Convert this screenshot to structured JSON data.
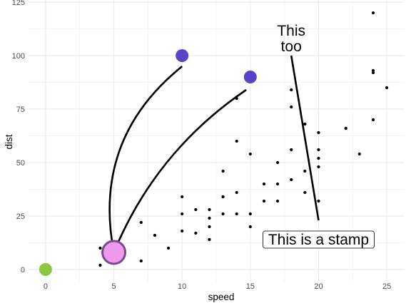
{
  "chart_data": {
    "type": "scatter",
    "xlabel": "speed",
    "ylabel": "dist",
    "xlim": [
      -1.25,
      26.25
    ],
    "ylim": [
      -6,
      126
    ],
    "xticks": [
      0,
      5,
      10,
      15,
      20,
      25
    ],
    "yticks": [
      0,
      25,
      50,
      75,
      100,
      125
    ],
    "grid": true,
    "points": [
      [
        4,
        2
      ],
      [
        4,
        10
      ],
      [
        7,
        4
      ],
      [
        7,
        22
      ],
      [
        8,
        16
      ],
      [
        9,
        10
      ],
      [
        10,
        18
      ],
      [
        10,
        26
      ],
      [
        10,
        34
      ],
      [
        11,
        17
      ],
      [
        11,
        28
      ],
      [
        12,
        14
      ],
      [
        12,
        20
      ],
      [
        12,
        24
      ],
      [
        12,
        28
      ],
      [
        13,
        26
      ],
      [
        13,
        34
      ],
      [
        13,
        34
      ],
      [
        13,
        46
      ],
      [
        14,
        26
      ],
      [
        14,
        36
      ],
      [
        14,
        60
      ],
      [
        14,
        80
      ],
      [
        15,
        20
      ],
      [
        15,
        26
      ],
      [
        15,
        54
      ],
      [
        16,
        32
      ],
      [
        16,
        40
      ],
      [
        17,
        32
      ],
      [
        17,
        40
      ],
      [
        17,
        50
      ],
      [
        18,
        42
      ],
      [
        18,
        56
      ],
      [
        18,
        76
      ],
      [
        18,
        84
      ],
      [
        19,
        36
      ],
      [
        19,
        46
      ],
      [
        19,
        68
      ],
      [
        20,
        32
      ],
      [
        20,
        48
      ],
      [
        20,
        52
      ],
      [
        20,
        56
      ],
      [
        20,
        64
      ],
      [
        22,
        66
      ],
      [
        23,
        54
      ],
      [
        24,
        70
      ],
      [
        24,
        92
      ],
      [
        24,
        93
      ],
      [
        24,
        120
      ],
      [
        25,
        85
      ]
    ],
    "highlight_points": [
      {
        "x": 0,
        "y": 0,
        "color": "#8cc63f"
      },
      {
        "x": 5,
        "y": 8,
        "color": "#ee99ee",
        "stroke": "#7a4a8a"
      },
      {
        "x": 10,
        "y": 100,
        "color": "#5b43c8"
      },
      {
        "x": 15,
        "y": 90,
        "color": "#5b43c8"
      }
    ],
    "curves": [
      {
        "from": [
          5,
          8
        ],
        "to": [
          10,
          95
        ],
        "curvature": -0.3
      },
      {
        "from": [
          5,
          8
        ],
        "to": [
          14.7,
          84
        ],
        "curvature": -0.15
      }
    ],
    "segments": [
      {
        "from": [
          18,
          100
        ],
        "to": [
          20,
          23
        ]
      }
    ],
    "annotations": [
      {
        "lines": [
          "This",
          "too"
        ],
        "x": 18,
        "y": 108,
        "boxed": false
      },
      {
        "lines": [
          "This is a stamp"
        ],
        "x": 20,
        "y": 14,
        "boxed": true
      }
    ]
  }
}
